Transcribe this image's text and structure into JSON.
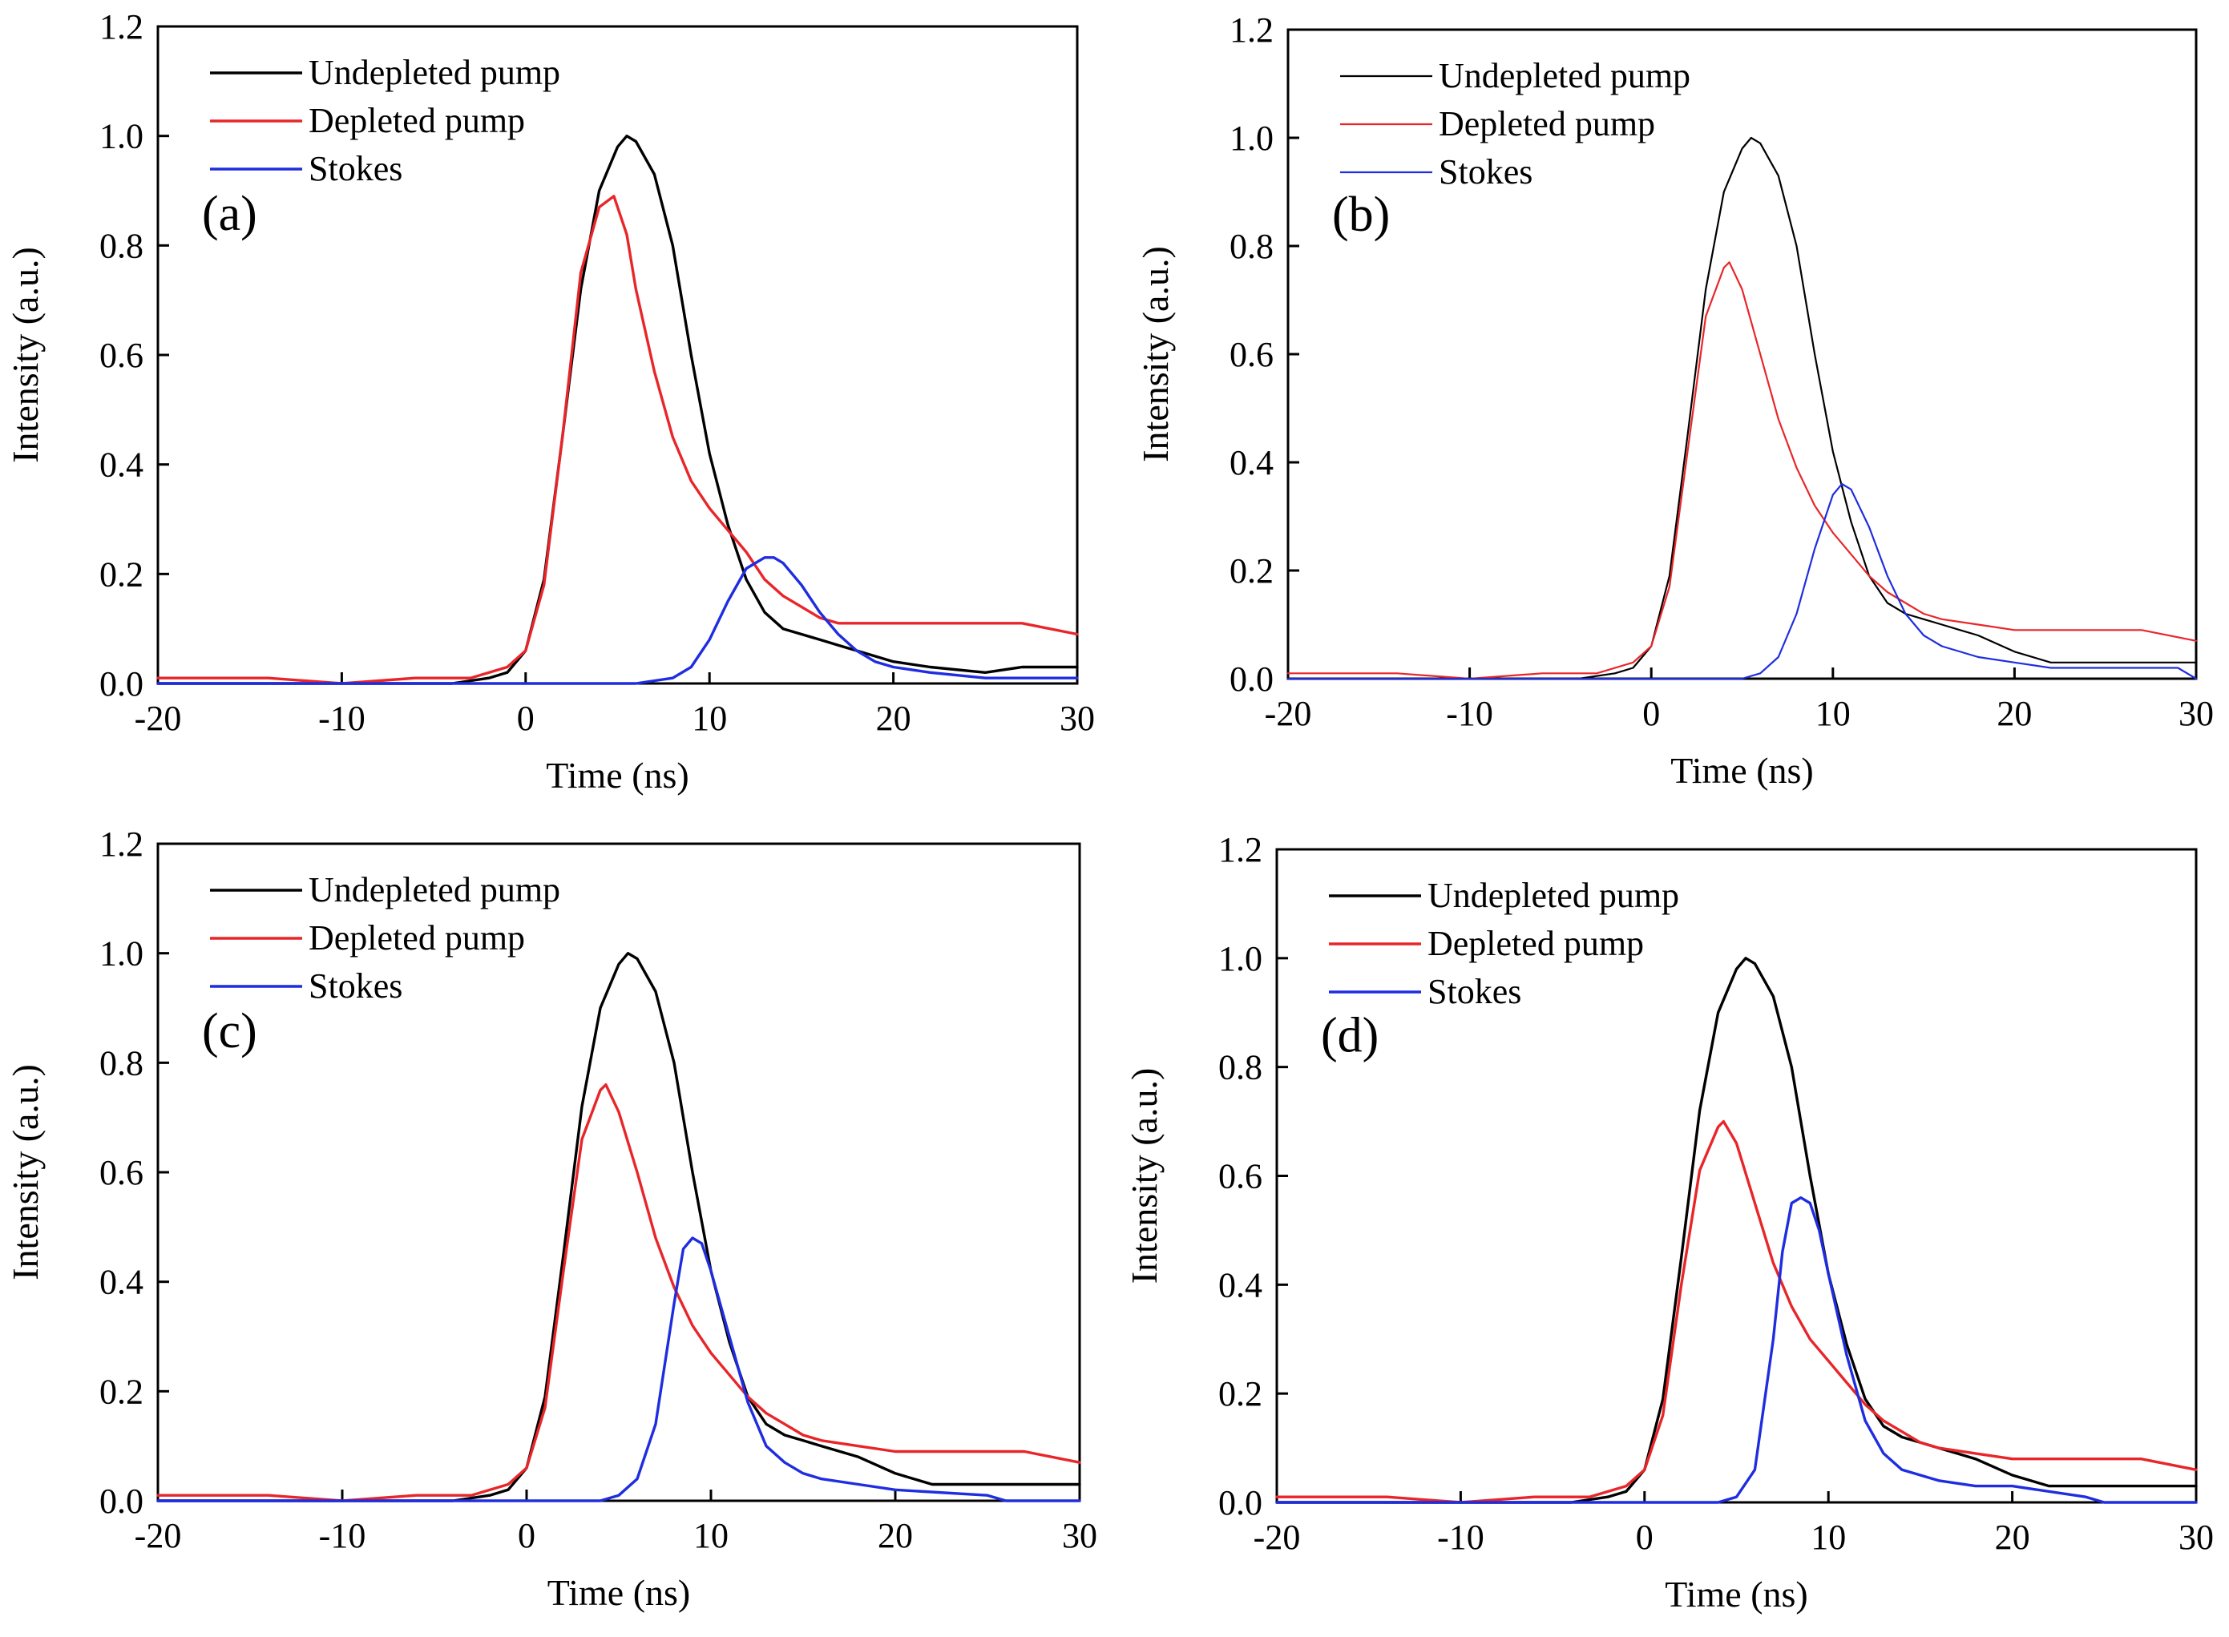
{
  "chart_data": [
    {
      "type": "line",
      "panel_label": "(a)",
      "xlabel": "Time (ns)",
      "ylabel": "Intensity (a.u.)",
      "xlim": [
        -20,
        30
      ],
      "ylim": [
        0,
        1.2
      ],
      "xticks": [
        -20,
        -10,
        0,
        10,
        20,
        30
      ],
      "xtick_labels": [
        "-20",
        "-10",
        "0",
        "10",
        "20",
        "30"
      ],
      "yticks": [
        0,
        0.2,
        0.4,
        0.6,
        0.8,
        1.0,
        1.2
      ],
      "ytick_labels": [
        "0.0",
        "0.2",
        "0.4",
        "0.6",
        "0.8",
        "1.0",
        "1.2"
      ],
      "legend_position": "top-left",
      "series": [
        {
          "name": "Undepleted pump",
          "color": "#000000",
          "x": [
            -20,
            -10,
            -4,
            -2,
            -1,
            0,
            1,
            2,
            3,
            4,
            5,
            5.5,
            6,
            7,
            8,
            9,
            10,
            11,
            12,
            13,
            14,
            15,
            16,
            17,
            18,
            20,
            22,
            25,
            27,
            30
          ],
          "y": [
            0.0,
            0.0,
            0.0,
            0.01,
            0.02,
            0.06,
            0.19,
            0.45,
            0.72,
            0.9,
            0.98,
            1.0,
            0.99,
            0.93,
            0.8,
            0.6,
            0.42,
            0.29,
            0.19,
            0.13,
            0.1,
            0.09,
            0.08,
            0.07,
            0.06,
            0.04,
            0.03,
            0.02,
            0.03,
            0.03
          ]
        },
        {
          "name": "Depleted pump",
          "color": "#e8262a",
          "x": [
            -20,
            -14,
            -10,
            -6,
            -3,
            -1,
            0,
            1,
            2,
            3,
            4,
            4.8,
            5.5,
            6,
            7,
            8,
            9,
            10,
            11,
            12,
            13,
            14,
            15,
            16,
            17,
            18,
            20,
            25,
            27,
            30
          ],
          "y": [
            0.01,
            0.01,
            0.0,
            0.01,
            0.01,
            0.03,
            0.06,
            0.18,
            0.45,
            0.75,
            0.87,
            0.89,
            0.82,
            0.72,
            0.57,
            0.45,
            0.37,
            0.32,
            0.28,
            0.24,
            0.19,
            0.16,
            0.14,
            0.12,
            0.11,
            0.11,
            0.11,
            0.11,
            0.11,
            0.09
          ]
        },
        {
          "name": "Stokes",
          "color": "#1f2de0",
          "x": [
            -20,
            0,
            6,
            8,
            9,
            10,
            11,
            12,
            13,
            13.5,
            14,
            15,
            16,
            17,
            18,
            19,
            20,
            22,
            25,
            30
          ],
          "y": [
            0.0,
            0.0,
            0.0,
            0.01,
            0.03,
            0.08,
            0.15,
            0.21,
            0.23,
            0.23,
            0.22,
            0.18,
            0.13,
            0.09,
            0.06,
            0.04,
            0.03,
            0.02,
            0.01,
            0.01
          ]
        }
      ]
    },
    {
      "type": "line",
      "panel_label": "(b)",
      "xlabel": "Time (ns)",
      "ylabel": "Intensity (a.u.)",
      "xlim": [
        -20,
        30
      ],
      "ylim": [
        0,
        1.2
      ],
      "xticks": [
        -20,
        -10,
        0,
        10,
        20,
        30
      ],
      "xtick_labels": [
        "-20",
        "-10",
        "0",
        "10",
        "20",
        "30"
      ],
      "yticks": [
        0,
        0.2,
        0.4,
        0.6,
        0.8,
        1.0,
        1.2
      ],
      "ytick_labels": [
        "0.0",
        "0.2",
        "0.4",
        "0.6",
        "0.8",
        "1.0",
        "1.2"
      ],
      "legend_position": "top-left",
      "series": [
        {
          "name": "Undepleted pump",
          "color": "#000000",
          "x": [
            -20,
            -10,
            -4,
            -2,
            -1,
            0,
            1,
            2,
            3,
            4,
            5,
            5.5,
            6,
            7,
            8,
            9,
            10,
            11,
            12,
            13,
            14,
            15,
            16,
            17,
            18,
            20,
            22,
            25,
            27,
            30
          ],
          "y": [
            0.0,
            0.0,
            0.0,
            0.01,
            0.02,
            0.06,
            0.19,
            0.45,
            0.72,
            0.9,
            0.98,
            1.0,
            0.99,
            0.93,
            0.8,
            0.6,
            0.42,
            0.29,
            0.19,
            0.14,
            0.12,
            0.11,
            0.1,
            0.09,
            0.08,
            0.05,
            0.03,
            0.03,
            0.03,
            0.03
          ]
        },
        {
          "name": "Depleted pump",
          "color": "#e8262a",
          "x": [
            -20,
            -14,
            -10,
            -6,
            -3,
            -1,
            0,
            1,
            2,
            3,
            4,
            4.3,
            5,
            6,
            7,
            8,
            9,
            10,
            11,
            12,
            13,
            14,
            15,
            16,
            18,
            20,
            25,
            27,
            30
          ],
          "y": [
            0.01,
            0.01,
            0.0,
            0.01,
            0.01,
            0.03,
            0.06,
            0.17,
            0.42,
            0.67,
            0.76,
            0.77,
            0.72,
            0.6,
            0.48,
            0.39,
            0.32,
            0.27,
            0.23,
            0.19,
            0.16,
            0.14,
            0.12,
            0.11,
            0.1,
            0.09,
            0.09,
            0.09,
            0.07
          ]
        },
        {
          "name": "Stokes",
          "color": "#1f2de0",
          "x": [
            -20,
            0,
            5,
            6,
            7,
            8,
            9,
            10,
            10.5,
            11,
            12,
            13,
            14,
            15,
            16,
            18,
            20,
            22,
            25,
            29,
            30
          ],
          "y": [
            0.0,
            0.0,
            0.0,
            0.01,
            0.04,
            0.12,
            0.24,
            0.34,
            0.36,
            0.35,
            0.28,
            0.19,
            0.12,
            0.08,
            0.06,
            0.04,
            0.03,
            0.02,
            0.02,
            0.02,
            0.0
          ]
        }
      ]
    },
    {
      "type": "line",
      "panel_label": "(c)",
      "xlabel": "Time (ns)",
      "ylabel": "Intensity (a.u.)",
      "xlim": [
        -20,
        30
      ],
      "ylim": [
        0,
        1.2
      ],
      "xticks": [
        -20,
        -10,
        0,
        10,
        20,
        30
      ],
      "xtick_labels": [
        "-20",
        "-10",
        "0",
        "10",
        "20",
        "30"
      ],
      "yticks": [
        0,
        0.2,
        0.4,
        0.6,
        0.8,
        1.0,
        1.2
      ],
      "ytick_labels": [
        "0.0",
        "0.2",
        "0.4",
        "0.6",
        "0.8",
        "1.0",
        "1.2"
      ],
      "legend_position": "top-left",
      "series": [
        {
          "name": "Undepleted pump",
          "color": "#000000",
          "x": [
            -20,
            -10,
            -4,
            -2,
            -1,
            0,
            1,
            2,
            3,
            4,
            5,
            5.5,
            6,
            7,
            8,
            9,
            10,
            11,
            12,
            13,
            14,
            15,
            16,
            17,
            18,
            20,
            22,
            25,
            27,
            30
          ],
          "y": [
            0.0,
            0.0,
            0.0,
            0.01,
            0.02,
            0.06,
            0.19,
            0.45,
            0.72,
            0.9,
            0.98,
            1.0,
            0.99,
            0.93,
            0.8,
            0.6,
            0.42,
            0.29,
            0.19,
            0.14,
            0.12,
            0.11,
            0.1,
            0.09,
            0.08,
            0.05,
            0.03,
            0.03,
            0.03,
            0.03
          ]
        },
        {
          "name": "Depleted pump",
          "color": "#e8262a",
          "x": [
            -20,
            -14,
            -10,
            -6,
            -3,
            -1,
            0,
            1,
            2,
            3,
            4,
            4.3,
            5,
            6,
            7,
            8,
            9,
            10,
            11,
            12,
            13,
            14,
            15,
            16,
            18,
            20,
            25,
            27,
            30
          ],
          "y": [
            0.01,
            0.01,
            0.0,
            0.01,
            0.01,
            0.03,
            0.06,
            0.17,
            0.42,
            0.66,
            0.75,
            0.76,
            0.71,
            0.6,
            0.48,
            0.39,
            0.32,
            0.27,
            0.23,
            0.19,
            0.16,
            0.14,
            0.12,
            0.11,
            0.1,
            0.09,
            0.09,
            0.09,
            0.07
          ]
        },
        {
          "name": "Stokes",
          "color": "#1f2de0",
          "x": [
            -20,
            0,
            4,
            5,
            6,
            7,
            8,
            8.5,
            9,
            9.5,
            10,
            11,
            12,
            13,
            14,
            15,
            16,
            18,
            20,
            25,
            26,
            30
          ],
          "y": [
            0.0,
            0.0,
            0.0,
            0.01,
            0.04,
            0.14,
            0.36,
            0.46,
            0.48,
            0.47,
            0.42,
            0.3,
            0.18,
            0.1,
            0.07,
            0.05,
            0.04,
            0.03,
            0.02,
            0.01,
            0.0,
            0.0
          ]
        }
      ]
    },
    {
      "type": "line",
      "panel_label": "(d)",
      "xlabel": "Time (ns)",
      "ylabel": "Intensity (a.u.)",
      "xlim": [
        -20,
        30
      ],
      "ylim": [
        0,
        1.2
      ],
      "xticks": [
        -20,
        -10,
        0,
        10,
        20,
        30
      ],
      "xtick_labels": [
        "-20",
        "-10",
        "0",
        "10",
        "20",
        "30"
      ],
      "yticks": [
        0,
        0.2,
        0.4,
        0.6,
        0.8,
        1.0,
        1.2
      ],
      "ytick_labels": [
        "0.0",
        "0.2",
        "0.4",
        "0.6",
        "0.8",
        "1.0",
        "1.2"
      ],
      "legend_position": "top-left",
      "series": [
        {
          "name": "Undepleted pump",
          "color": "#000000",
          "x": [
            -20,
            -10,
            -4,
            -2,
            -1,
            0,
            1,
            2,
            3,
            4,
            5,
            5.5,
            6,
            7,
            8,
            9,
            10,
            11,
            12,
            13,
            14,
            15,
            16,
            17,
            18,
            20,
            22,
            25,
            27,
            30
          ],
          "y": [
            0.0,
            0.0,
            0.0,
            0.01,
            0.02,
            0.06,
            0.19,
            0.45,
            0.72,
            0.9,
            0.98,
            1.0,
            0.99,
            0.93,
            0.8,
            0.6,
            0.42,
            0.29,
            0.19,
            0.14,
            0.12,
            0.11,
            0.1,
            0.09,
            0.08,
            0.05,
            0.03,
            0.03,
            0.03,
            0.03
          ]
        },
        {
          "name": "Depleted pump",
          "color": "#e8262a",
          "x": [
            -20,
            -14,
            -10,
            -6,
            -3,
            -1,
            0,
            1,
            2,
            3,
            4,
            4.3,
            5,
            6,
            7,
            8,
            9,
            10,
            11,
            12,
            13,
            14,
            15,
            16,
            18,
            20,
            25,
            27,
            30
          ],
          "y": [
            0.01,
            0.01,
            0.0,
            0.01,
            0.01,
            0.03,
            0.06,
            0.16,
            0.4,
            0.61,
            0.69,
            0.7,
            0.66,
            0.55,
            0.44,
            0.36,
            0.3,
            0.26,
            0.22,
            0.18,
            0.15,
            0.13,
            0.11,
            0.1,
            0.09,
            0.08,
            0.08,
            0.08,
            0.06
          ]
        },
        {
          "name": "Stokes",
          "color": "#1f2de0",
          "x": [
            -20,
            0,
            4,
            5,
            6,
            7,
            7.5,
            8,
            8.5,
            9,
            9.5,
            10,
            11,
            12,
            13,
            14,
            15,
            16,
            18,
            20,
            24,
            25,
            30
          ],
          "y": [
            0.0,
            0.0,
            0.0,
            0.01,
            0.06,
            0.3,
            0.46,
            0.55,
            0.56,
            0.55,
            0.5,
            0.42,
            0.27,
            0.15,
            0.09,
            0.06,
            0.05,
            0.04,
            0.03,
            0.03,
            0.01,
            0.0,
            0.0
          ]
        }
      ]
    }
  ]
}
